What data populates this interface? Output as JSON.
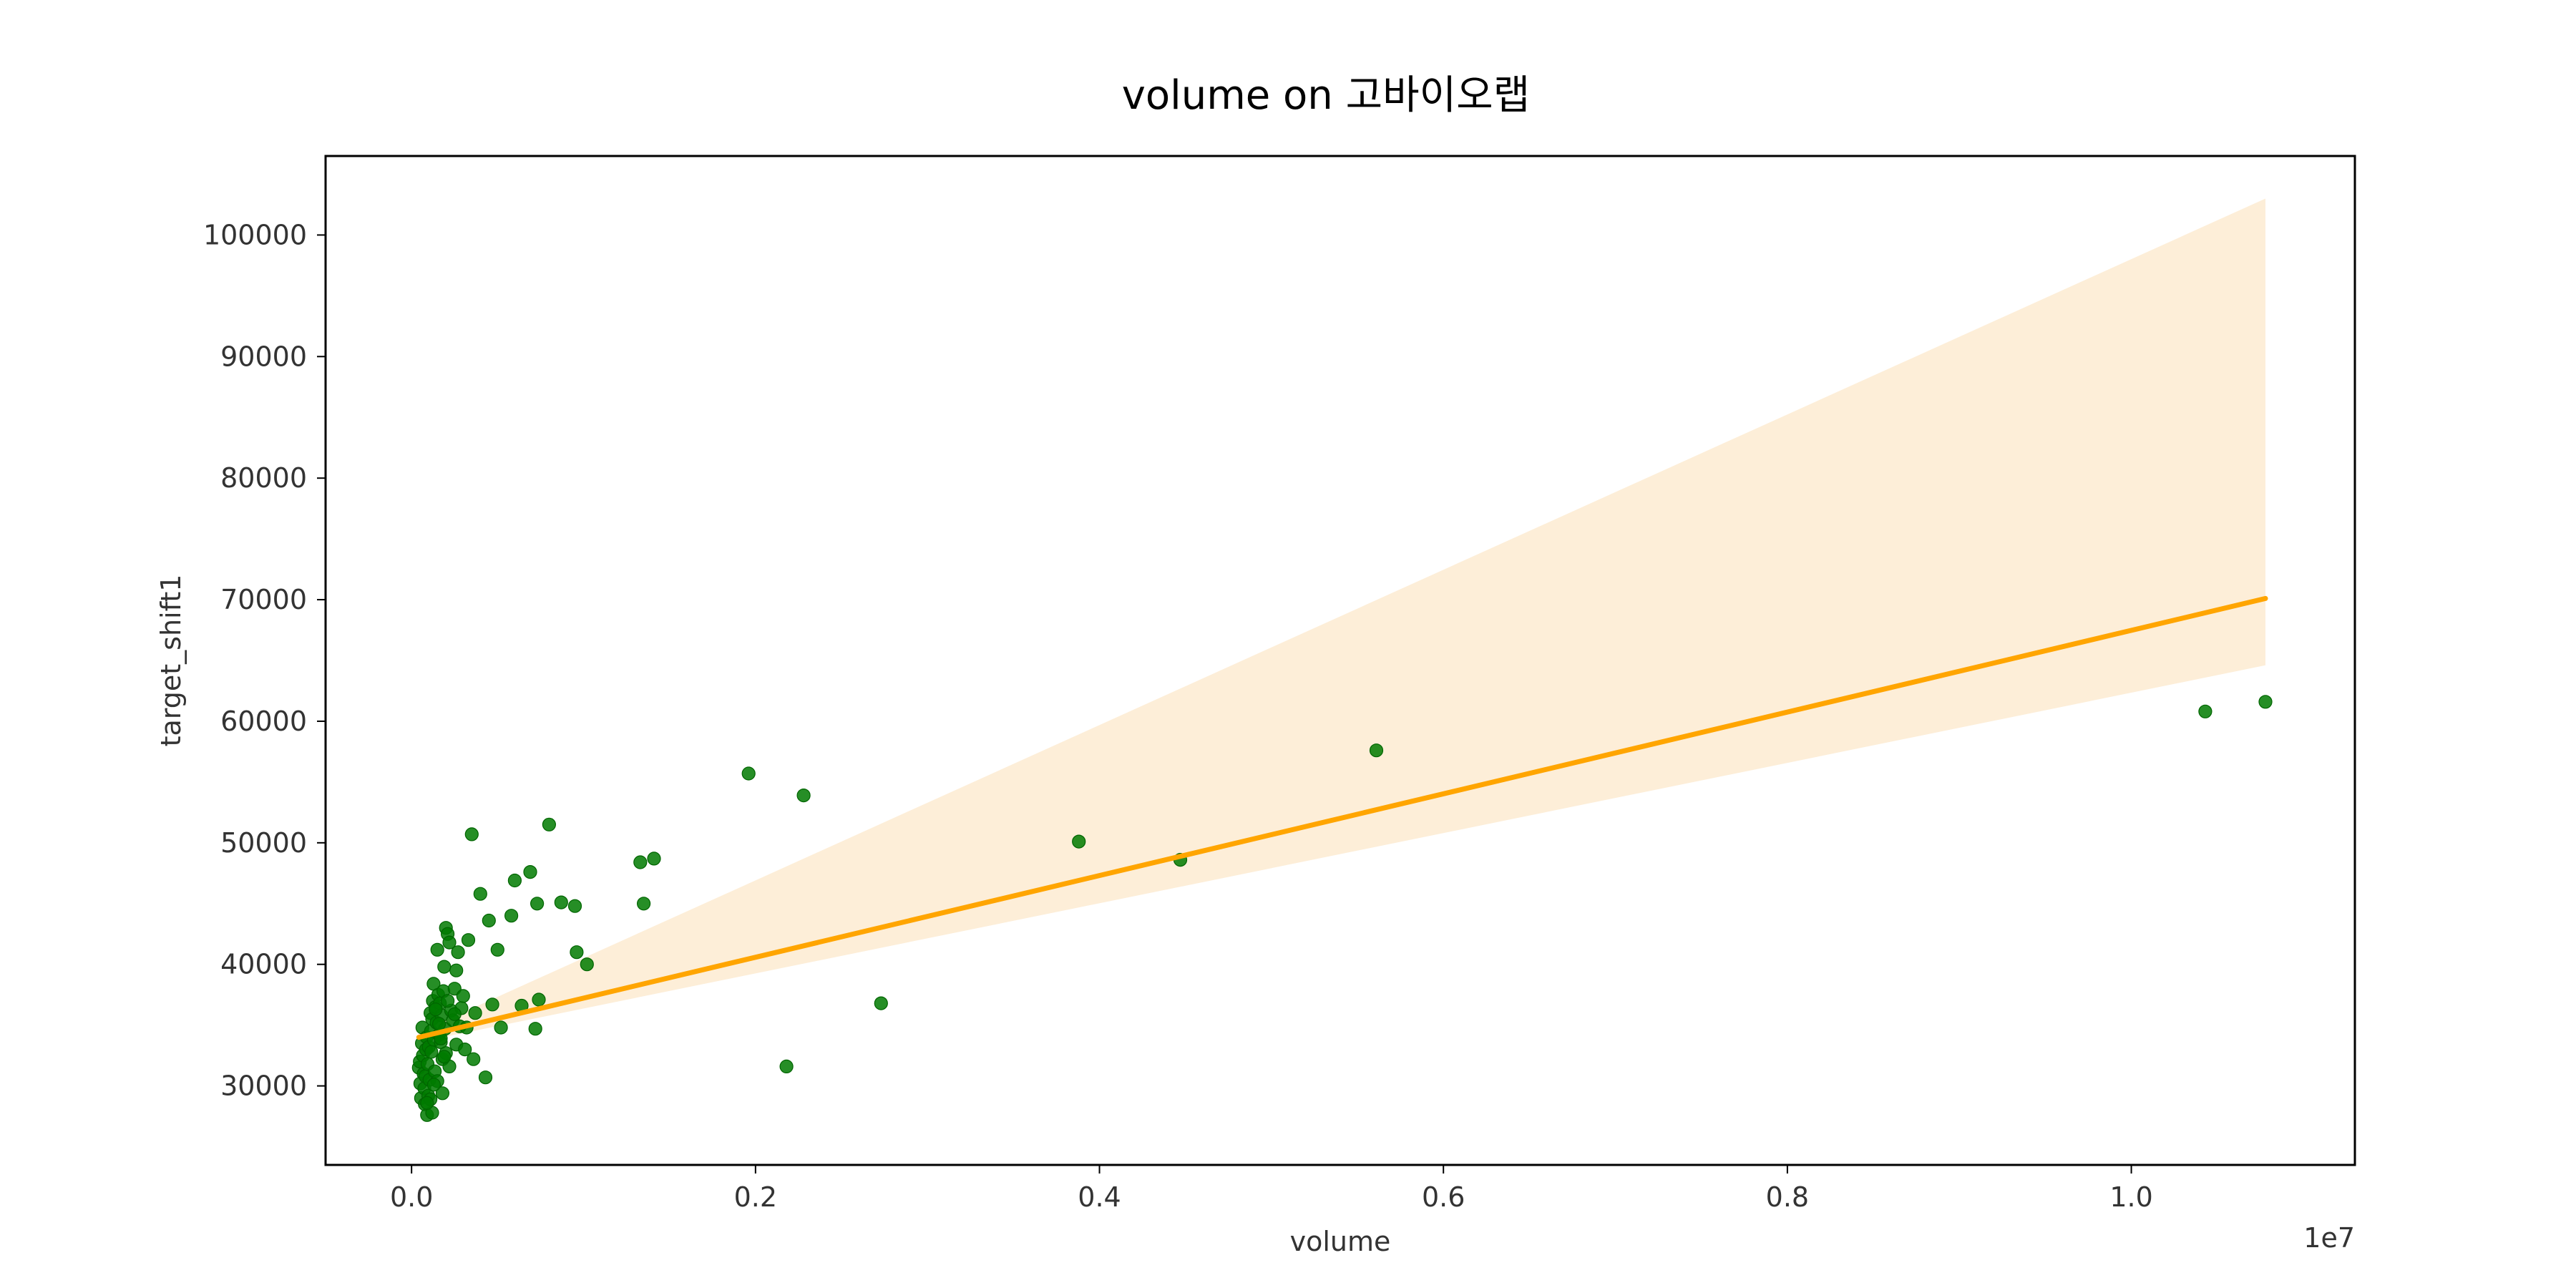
{
  "chart_data": {
    "type": "scatter",
    "title": "volume on 고바이오랩",
    "xlabel": "volume",
    "ylabel": "target_shift1",
    "x_offset_label": "1e7",
    "x_scale": 10000000,
    "xlim": [
      -0.05,
      1.13
    ],
    "ylim": [
      23500,
      106500
    ],
    "xticks": [
      0.0,
      0.2,
      0.4,
      0.6,
      0.8,
      1.0
    ],
    "xtick_labels": [
      "0.0",
      "0.2",
      "0.4",
      "0.6",
      "0.8",
      "1.0"
    ],
    "yticks": [
      30000,
      40000,
      50000,
      60000,
      70000,
      80000,
      90000,
      100000
    ],
    "ytick_labels": [
      "30000",
      "40000",
      "50000",
      "60000",
      "70000",
      "80000",
      "90000",
      "100000"
    ],
    "grid": false,
    "colors": {
      "points": "#007a00",
      "line": "#ffa500",
      "band": "#fdeed8",
      "frame": "#000000"
    },
    "series": [
      {
        "kind": "points",
        "x": [
          0.0042,
          0.0048,
          0.0051,
          0.0055,
          0.006,
          0.0063,
          0.0066,
          0.007,
          0.0074,
          0.0077,
          0.008,
          0.0084,
          0.0088,
          0.009,
          0.0093,
          0.0097,
          0.01,
          0.0104,
          0.011,
          0.0113,
          0.0115,
          0.012,
          0.0124,
          0.0128,
          0.013,
          0.0135,
          0.014,
          0.0145,
          0.015,
          0.0155,
          0.016,
          0.0165,
          0.017,
          0.0175,
          0.018,
          0.0185,
          0.019,
          0.0195,
          0.02,
          0.021,
          0.022,
          0.023,
          0.024,
          0.025,
          0.026,
          0.027,
          0.028,
          0.029,
          0.03,
          0.031,
          0.033,
          0.035,
          0.036,
          0.037,
          0.04,
          0.043,
          0.045,
          0.047,
          0.05,
          0.052,
          0.058,
          0.06,
          0.064,
          0.069,
          0.072,
          0.073,
          0.074,
          0.08,
          0.087,
          0.095,
          0.096,
          0.102,
          0.133,
          0.135,
          0.141,
          0.196,
          0.218,
          0.228,
          0.273,
          0.388,
          0.447,
          0.561,
          1.043,
          1.078,
          0.012,
          0.015,
          0.018,
          0.022,
          0.025,
          0.02,
          0.014,
          0.016,
          0.011,
          0.013,
          0.017,
          0.009,
          0.021,
          0.019,
          0.026,
          0.032
        ],
        "y": [
          31500,
          32000,
          30200,
          29000,
          33500,
          34800,
          32500,
          31000,
          29800,
          28500,
          30800,
          33000,
          34000,
          27600,
          31800,
          29200,
          33200,
          30500,
          36000,
          34500,
          32800,
          35500,
          37000,
          38400,
          33800,
          31200,
          36500,
          35200,
          41200,
          37500,
          34200,
          36800,
          33600,
          35800,
          32200,
          37800,
          39800,
          34700,
          43000,
          42500,
          41800,
          36200,
          35400,
          38000,
          33400,
          41000,
          34900,
          36400,
          37400,
          33000,
          42000,
          50700,
          32200,
          36000,
          45800,
          30700,
          43600,
          36700,
          41200,
          34800,
          44000,
          46900,
          36600,
          47600,
          34700,
          45000,
          37100,
          51500,
          45100,
          44800,
          41000,
          40000,
          48400,
          45000,
          48700,
          55700,
          31600,
          53900,
          36800,
          50100,
          48600,
          57600,
          60800,
          61600,
          27800,
          30400,
          29400,
          31600,
          35900,
          32700,
          36300,
          35100,
          28900,
          30100,
          33900,
          28600,
          37000,
          32400,
          39500,
          34800
        ]
      },
      {
        "kind": "regression",
        "x": [
          0.0042,
          1.078
        ],
        "y": [
          34000,
          70100
        ],
        "ci_upper": [
          34400,
          103000
        ],
        "ci_lower": [
          33600,
          64600
        ]
      }
    ]
  }
}
